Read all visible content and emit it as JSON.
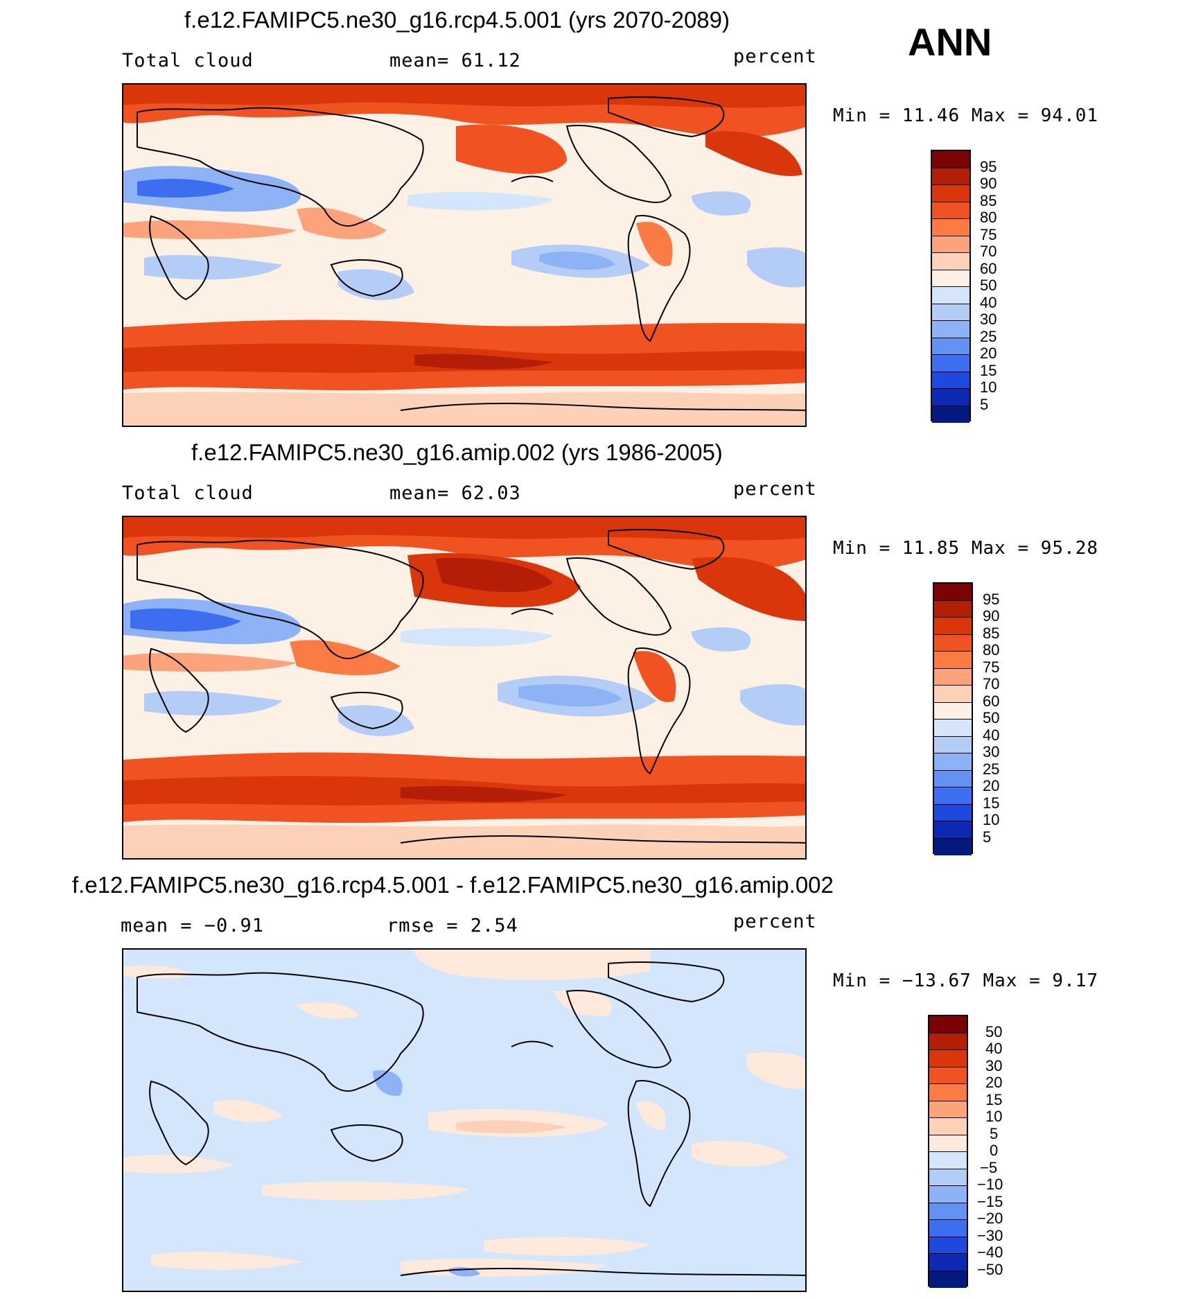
{
  "season": "ANN",
  "panels": [
    {
      "title": "f.e12.FAMIPC5.ne30_g16.rcp4.5.001 (yrs 2070-2089)",
      "left_label": "Total cloud",
      "center_label": "mean=   61.12",
      "units": "percent",
      "minmax": "Min =   11.46 Max =   94.01",
      "colorbar_labels": [
        "95",
        "90",
        "85",
        "80",
        "75",
        "70",
        "60",
        "50",
        "40",
        "30",
        "25",
        "20",
        "15",
        "10",
        "5"
      ]
    },
    {
      "title": "f.e12.FAMIPC5.ne30_g16.amip.002 (yrs 1986-2005)",
      "left_label": "Total cloud",
      "center_label": "mean=   62.03",
      "units": "percent",
      "minmax": "Min =   11.85 Max =   95.28",
      "colorbar_labels": [
        "95",
        "90",
        "85",
        "80",
        "75",
        "70",
        "60",
        "50",
        "40",
        "30",
        "25",
        "20",
        "15",
        "10",
        "5"
      ]
    },
    {
      "title": "f.e12.FAMIPC5.ne30_g16.rcp4.5.001 - f.e12.FAMIPC5.ne30_g16.amip.002",
      "left_label": "mean =   −0.91",
      "center_label": "rmse =    2.54",
      "units": "percent",
      "minmax": "Min = −13.67 Max =    9.17",
      "colorbar_labels": [
        "50",
        "40",
        "30",
        "20",
        "15",
        "10",
        "5",
        "0",
        "−5",
        "−10",
        "−15",
        "−20",
        "−30",
        "−40",
        "−50"
      ]
    }
  ],
  "colors": {
    "abs_scale": [
      "#7a0403",
      "#b21e06",
      "#d9360c",
      "#f05221",
      "#fb7b45",
      "#fca37c",
      "#fdd0b8",
      "#fdf0e5",
      "#d4e6fb",
      "#b3cdf7",
      "#8db2f5",
      "#6492f2",
      "#3d6ef0",
      "#1e49dd",
      "#0c28b4",
      "#051a7e"
    ],
    "diff_scale": [
      "#7a0403",
      "#b21e06",
      "#d9360c",
      "#f05221",
      "#fb7b45",
      "#fca37c",
      "#fdd0b8",
      "#fdeadc",
      "#d4e6fb",
      "#b3cdf7",
      "#8db2f5",
      "#6492f2",
      "#3d6ef0",
      "#1e49dd",
      "#0c28b4",
      "#051a7e"
    ]
  }
}
